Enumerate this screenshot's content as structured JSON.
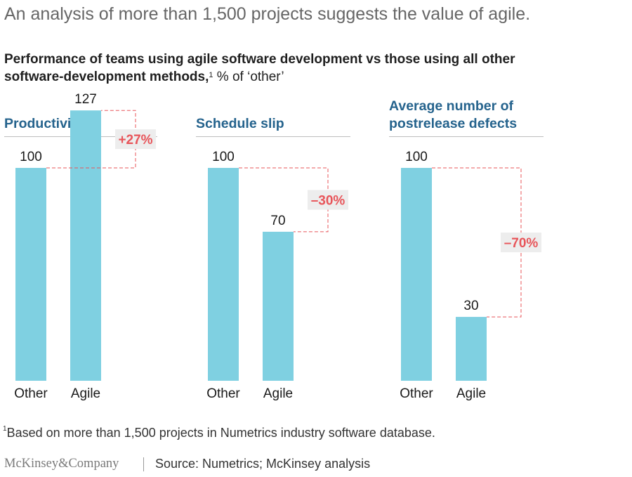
{
  "headline": "An analysis of more than 1,500 projects suggests the value of agile.",
  "subtitle": {
    "text": "Performance of teams using agile software development vs those using all other software-development methods,",
    "footnote_marker": "1",
    "unit": "% of ‘other’"
  },
  "colors": {
    "bar": "#7fd0e1",
    "annotation": "#e8555a",
    "annotation_bg": "#ededed",
    "panel_title": "#25638d"
  },
  "chart_data": [
    {
      "type": "bar",
      "title": "Productivity",
      "categories": [
        "Other",
        "Agile"
      ],
      "values": [
        100,
        127
      ],
      "value_labels": [
        "100",
        "127"
      ],
      "change_label": "+27%",
      "ylim": [
        0,
        130
      ],
      "grid": false
    },
    {
      "type": "bar",
      "title": "Schedule slip",
      "categories": [
        "Other",
        "Agile"
      ],
      "values": [
        100,
        70
      ],
      "value_labels": [
        "100",
        "70"
      ],
      "change_label": "–30%",
      "ylim": [
        0,
        130
      ],
      "grid": false
    },
    {
      "type": "bar",
      "title": "Average number of postrelease defects",
      "categories": [
        "Other",
        "Agile"
      ],
      "values": [
        100,
        30
      ],
      "value_labels": [
        "100",
        "30"
      ],
      "change_label": "–70%",
      "ylim": [
        0,
        130
      ],
      "grid": false
    }
  ],
  "footnote": {
    "marker": "1",
    "text": "Based on more than 1,500 projects in Numetrics industry software database."
  },
  "brand": "McKinsey&Company",
  "source": "Source: Numetrics; McKinsey analysis"
}
